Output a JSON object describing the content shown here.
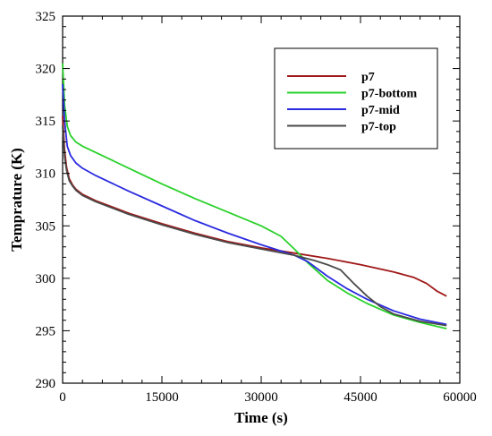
{
  "chart_data": {
    "type": "line",
    "xlabel": "Time (s)",
    "ylabel": "Temprature (K)",
    "xlim": [
      0,
      60000
    ],
    "ylim": [
      290,
      325
    ],
    "x_ticks": [
      "0",
      "15000",
      "30000",
      "45000",
      "60000"
    ],
    "y_ticks": [
      "290",
      "295",
      "300",
      "305",
      "310",
      "315",
      "320",
      "325"
    ],
    "grid": false,
    "legend_position": "top-right",
    "series": [
      {
        "name": "p7",
        "color": "#a01818",
        "points": [
          [
            0,
            315.5
          ],
          [
            300,
            312.2
          ],
          [
            600,
            310.6
          ],
          [
            1000,
            309.5
          ],
          [
            1500,
            308.9
          ],
          [
            2000,
            308.5
          ],
          [
            3000,
            308.0
          ],
          [
            5000,
            307.4
          ],
          [
            10000,
            306.2
          ],
          [
            15000,
            305.2
          ],
          [
            20000,
            304.3
          ],
          [
            25000,
            303.5
          ],
          [
            30000,
            302.9
          ],
          [
            35000,
            302.4
          ],
          [
            40000,
            301.9
          ],
          [
            45000,
            301.3
          ],
          [
            50000,
            300.6
          ],
          [
            53000,
            300.1
          ],
          [
            55000,
            299.5
          ],
          [
            56500,
            298.8
          ],
          [
            58000,
            298.3
          ]
        ]
      },
      {
        "name": "p7-bottom",
        "color": "#2ad12a",
        "points": [
          [
            0,
            320.5
          ],
          [
            300,
            316.5
          ],
          [
            700,
            314.5
          ],
          [
            1200,
            313.6
          ],
          [
            2000,
            313.0
          ],
          [
            3000,
            312.6
          ],
          [
            5000,
            312.0
          ],
          [
            10000,
            310.5
          ],
          [
            15000,
            309.0
          ],
          [
            20000,
            307.6
          ],
          [
            25000,
            306.3
          ],
          [
            30000,
            305.0
          ],
          [
            33000,
            304.0
          ],
          [
            35000,
            302.8
          ],
          [
            37000,
            301.5
          ],
          [
            40000,
            299.8
          ],
          [
            43000,
            298.6
          ],
          [
            46000,
            297.6
          ],
          [
            50000,
            296.5
          ],
          [
            54000,
            295.8
          ],
          [
            58000,
            295.2
          ]
        ]
      },
      {
        "name": "p7-mid",
        "color": "#2a2ae0",
        "points": [
          [
            0,
            318.5
          ],
          [
            300,
            315.0
          ],
          [
            700,
            312.6
          ],
          [
            1200,
            311.7
          ],
          [
            2000,
            311.0
          ],
          [
            3000,
            310.5
          ],
          [
            5000,
            309.8
          ],
          [
            10000,
            308.3
          ],
          [
            15000,
            306.9
          ],
          [
            20000,
            305.5
          ],
          [
            25000,
            304.3
          ],
          [
            30000,
            303.2
          ],
          [
            35000,
            302.2
          ],
          [
            37000,
            301.6
          ],
          [
            40000,
            300.2
          ],
          [
            43000,
            299.0
          ],
          [
            46000,
            298.0
          ],
          [
            50000,
            296.9
          ],
          [
            54000,
            296.1
          ],
          [
            58000,
            295.6
          ]
        ]
      },
      {
        "name": "p7-top",
        "color": "#4a4a4a",
        "points": [
          [
            0,
            314.5
          ],
          [
            300,
            311.6
          ],
          [
            600,
            310.3
          ],
          [
            1000,
            309.3
          ],
          [
            1500,
            308.8
          ],
          [
            2000,
            308.4
          ],
          [
            3000,
            307.9
          ],
          [
            5000,
            307.3
          ],
          [
            10000,
            306.1
          ],
          [
            15000,
            305.1
          ],
          [
            20000,
            304.2
          ],
          [
            25000,
            303.4
          ],
          [
            30000,
            302.8
          ],
          [
            35000,
            302.2
          ],
          [
            38000,
            301.7
          ],
          [
            40000,
            301.3
          ],
          [
            42000,
            300.8
          ],
          [
            44000,
            299.5
          ],
          [
            46000,
            298.3
          ],
          [
            48000,
            297.3
          ],
          [
            50000,
            296.6
          ],
          [
            54000,
            295.9
          ],
          [
            58000,
            295.5
          ]
        ]
      }
    ]
  }
}
